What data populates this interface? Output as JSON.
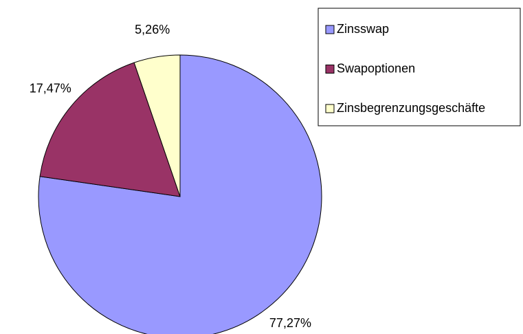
{
  "chart_data": {
    "type": "pie",
    "categories": [
      "Zinsswap",
      "Swapoptionen",
      "Zinsbegrenzungsgeschäfte"
    ],
    "values": [
      77.27,
      17.47,
      5.26
    ],
    "value_labels": [
      "77,27%",
      "17,47%",
      "5,26%"
    ],
    "colors": [
      "#9999ff",
      "#993366",
      "#ffffcc"
    ]
  }
}
